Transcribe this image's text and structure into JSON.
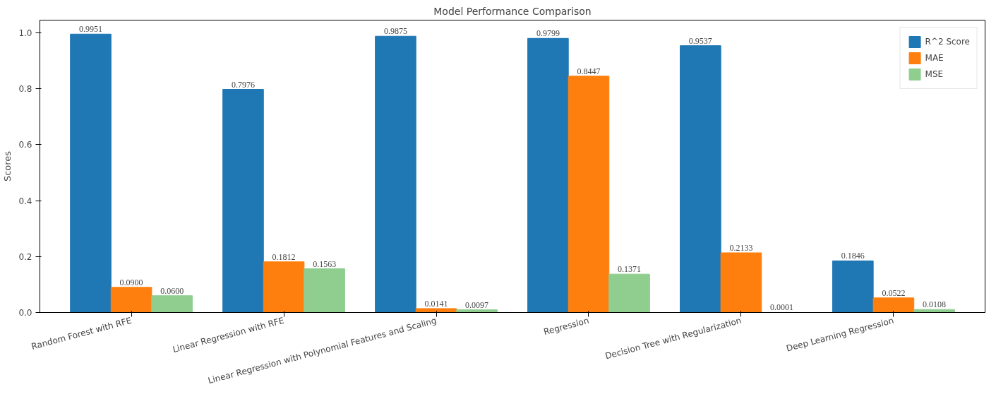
{
  "chart_data": {
    "type": "bar",
    "title": "Model Performance Comparison",
    "ylabel": "Scores",
    "categories": [
      "Random Forest with RFE",
      "Linear Regression with RFE",
      "Linear Regression with Polynomial Features and Scaling",
      "Regression",
      "Decision Tree with Regularization",
      "Deep Learning Regression"
    ],
    "series": [
      {
        "name": "R^2 Score",
        "color": "#1f77b4",
        "values": [
          0.9951,
          0.7976,
          0.9875,
          0.9799,
          0.9537,
          0.1846
        ],
        "value_labels": [
          "0.9951",
          "0.7976",
          "0.9875",
          "0.9799",
          "0.9537",
          "0.1846"
        ]
      },
      {
        "name": "MAE",
        "color": "#ff7f0e",
        "values": [
          0.09,
          0.1812,
          0.0141,
          0.8447,
          0.2133,
          0.0522
        ],
        "value_labels": [
          "0.0900",
          "0.1812",
          "0.0141",
          "0.8447",
          "0.2133",
          "0.0522"
        ]
      },
      {
        "name": "MSE",
        "color": "#8fce8f",
        "values": [
          0.06,
          0.1563,
          0.0097,
          0.1371,
          0.0001,
          0.0108
        ],
        "value_labels": [
          "0.0600",
          "0.1563",
          "0.0097",
          "0.1371",
          "0.0001",
          "0.0108"
        ]
      }
    ],
    "ylim": [
      0,
      1.045
    ],
    "yticks": [
      {
        "value": 0,
        "label": "0.0"
      },
      0.2,
      0.4,
      0.6,
      0.8,
      {
        "value": 1,
        "label": "1.0"
      }
    ],
    "legend": "top right",
    "grid": false
  }
}
